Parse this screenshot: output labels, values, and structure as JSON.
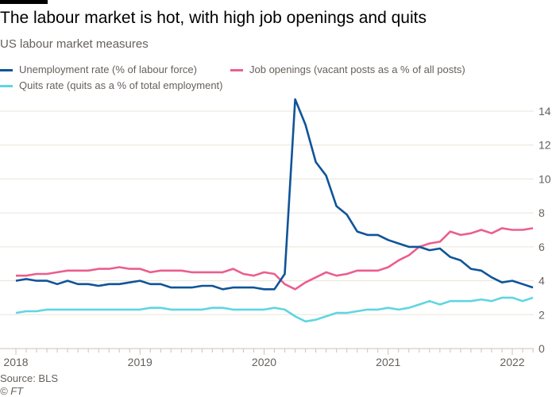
{
  "chart_data": {
    "type": "line",
    "title": "The labour market is hot, with high job openings and quits",
    "subtitle": "US labour market measures",
    "x_start": "2018-01",
    "x_frequency": "monthly",
    "x_ticks": [
      "2018",
      "2019",
      "2020",
      "2021",
      "2022"
    ],
    "y_ticks": [
      0,
      2,
      4,
      6,
      8,
      10,
      12,
      14
    ],
    "ylim": [
      0,
      14
    ],
    "grid": true,
    "y_axis_side": "right",
    "legend_placement": "top-left",
    "series": [
      {
        "name": "Unemployment rate (% of labour force)",
        "color": "#0f5499",
        "values": [
          4.0,
          4.1,
          4.0,
          4.0,
          3.8,
          4.0,
          3.8,
          3.8,
          3.7,
          3.8,
          3.8,
          3.9,
          4.0,
          3.8,
          3.8,
          3.6,
          3.6,
          3.6,
          3.7,
          3.7,
          3.5,
          3.6,
          3.6,
          3.6,
          3.5,
          3.5,
          4.4,
          14.7,
          13.2,
          11.0,
          10.2,
          8.4,
          7.9,
          6.9,
          6.7,
          6.7,
          6.4,
          6.2,
          6.0,
          6.0,
          5.8,
          5.9,
          5.4,
          5.2,
          4.7,
          4.6,
          4.2,
          3.9,
          4.0,
          3.8,
          3.6
        ]
      },
      {
        "name": "Job openings (vacant posts as a % of all posts)",
        "color": "#eb5e8d",
        "values": [
          4.3,
          4.3,
          4.4,
          4.4,
          4.5,
          4.6,
          4.6,
          4.6,
          4.7,
          4.7,
          4.8,
          4.7,
          4.7,
          4.5,
          4.6,
          4.6,
          4.6,
          4.5,
          4.5,
          4.5,
          4.5,
          4.7,
          4.4,
          4.3,
          4.5,
          4.4,
          3.8,
          3.5,
          3.9,
          4.2,
          4.5,
          4.3,
          4.4,
          4.6,
          4.6,
          4.6,
          4.8,
          5.2,
          5.5,
          6.0,
          6.2,
          6.3,
          6.9,
          6.7,
          6.8,
          7.0,
          6.8,
          7.1,
          7.0,
          7.0,
          7.1
        ]
      },
      {
        "name": "Quits rate (quits as a % of total employment)",
        "color": "#5fd6e0",
        "values": [
          2.1,
          2.2,
          2.2,
          2.3,
          2.3,
          2.3,
          2.3,
          2.3,
          2.3,
          2.3,
          2.3,
          2.3,
          2.3,
          2.4,
          2.4,
          2.3,
          2.3,
          2.3,
          2.3,
          2.4,
          2.4,
          2.3,
          2.3,
          2.3,
          2.3,
          2.4,
          2.3,
          1.9,
          1.6,
          1.7,
          1.9,
          2.1,
          2.1,
          2.2,
          2.3,
          2.3,
          2.4,
          2.3,
          2.4,
          2.6,
          2.8,
          2.6,
          2.8,
          2.8,
          2.8,
          2.9,
          2.8,
          3.0,
          3.0,
          2.8,
          3.0
        ]
      }
    ],
    "source": "Source: BLS",
    "credit": "© FT"
  }
}
